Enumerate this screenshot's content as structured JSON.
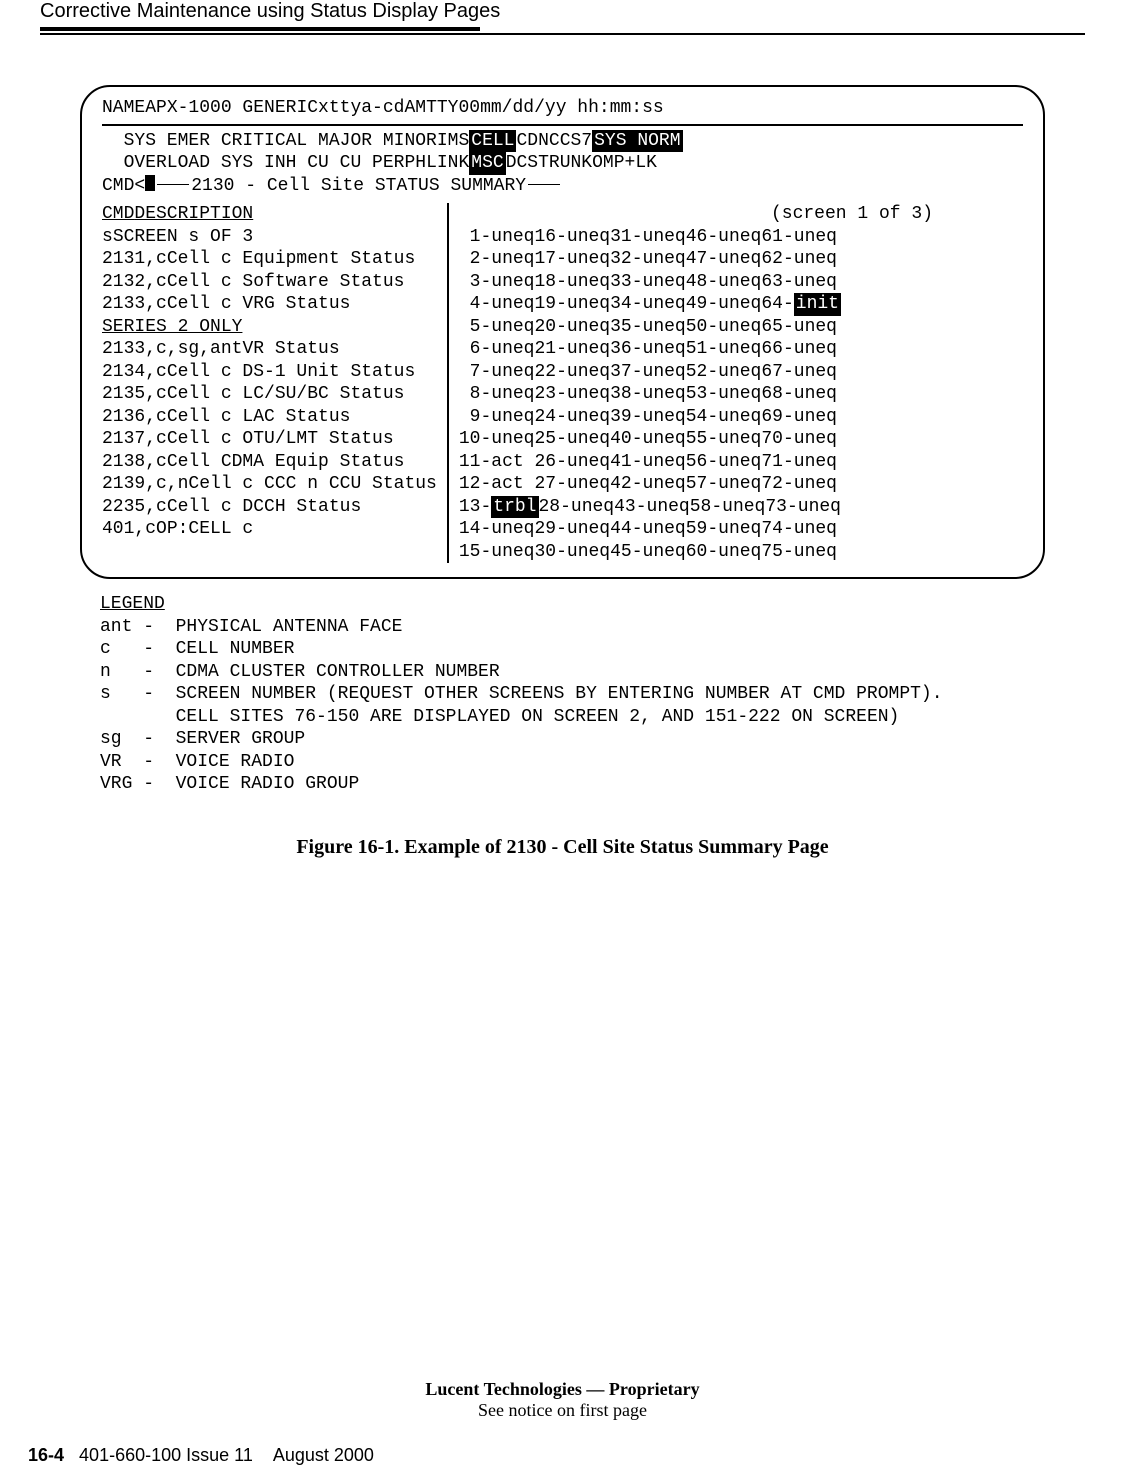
{
  "header": {
    "title": "Corrective Maintenance using Status Display Pages"
  },
  "terminal": {
    "top": {
      "name_label": "NAME",
      "name_value": "APX-1000 GENERIC",
      "tty": "xttya-cdA",
      "mtty": "MTTY00",
      "datetime": "mm/dd/yy hh:mm:ss"
    },
    "hdr_row1": {
      "left": "  SYS EMER CRITICAL MAJOR MINOR",
      "ims": "IMS",
      "cell": "CELL",
      "cdn": "CDN",
      "ccs7": "CCS7",
      "sysnorm": "SYS NORM"
    },
    "hdr_row2": {
      "left": "  OVERLOAD SYS INH CU CU PERPH",
      "link": "LINK",
      "msc": "MSC",
      "dcs": "DCS",
      "trunk": "TRUNK",
      "omplk": "OMP+LK"
    },
    "cmd_prompt": "CMD<",
    "summary_title": "2130 - Cell Site STATUS SUMMARY",
    "screen_info": "(screen 1 of 3)",
    "left_header_cmd": "CMD",
    "left_header_desc": "DESCRIPTION",
    "commands": [
      {
        "cmd": "s",
        "desc": "SCREEN s OF 3"
      },
      {
        "cmd": "2131,c",
        "desc": "Cell c Equipment Status"
      },
      {
        "cmd": "2132,c",
        "desc": "Cell c Software Status"
      },
      {
        "cmd": "2133,c",
        "desc": "Cell c VRG Status"
      }
    ],
    "series_label": "SERIES 2 ONLY",
    "commands2": [
      {
        "cmd": "2133,c,sg,ant",
        "desc": "VR Status"
      },
      {
        "cmd": "2134,c",
        "desc": "Cell c DS-1 Unit Status"
      },
      {
        "cmd": "2135,c",
        "desc": "Cell c LC/SU/BC Status"
      },
      {
        "cmd": "2136,c",
        "desc": "Cell c LAC Status"
      },
      {
        "cmd": "2137,c",
        "desc": "Cell c OTU/LMT Status"
      },
      {
        "cmd": "2138,c",
        "desc": "Cell CDMA Equip Status"
      },
      {
        "cmd": "2139,c,n",
        "desc": "Cell c CCC n CCU Status"
      },
      {
        "cmd": "2235,c",
        "desc": "Cell c DCCH Status"
      }
    ],
    "op_cmd": {
      "cmd": "401,c",
      "desc": "OP:CELL c"
    },
    "status_rows": [
      [
        " 1-uneq",
        "16-uneq",
        "31-uneq",
        "46-uneq",
        "61-uneq"
      ],
      [
        " 2-uneq",
        "17-uneq",
        "32-uneq",
        "47-uneq",
        "62-uneq"
      ],
      [
        " 3-uneq",
        "18-uneq",
        "33-uneq",
        "48-uneq",
        "63-uneq"
      ],
      [
        " 4-uneq",
        "19-uneq",
        "34-uneq",
        "49-uneq",
        "64-"
      ],
      [
        " 5-uneq",
        "20-uneq",
        "35-uneq",
        "50-uneq",
        "65-uneq"
      ],
      [
        " 6-uneq",
        "21-uneq",
        "36-uneq",
        "51-uneq",
        "66-uneq"
      ],
      [
        " 7-uneq",
        "22-uneq",
        "37-uneq",
        "52-uneq",
        "67-uneq"
      ],
      [
        " 8-uneq",
        "23-uneq",
        "38-uneq",
        "53-uneq",
        "68-uneq"
      ],
      [
        " 9-uneq",
        "24-uneq",
        "39-uneq",
        "54-uneq",
        "69-uneq"
      ],
      [
        "10-uneq",
        "25-uneq",
        "40-uneq",
        "55-uneq",
        "70-uneq"
      ],
      [
        "11-act ",
        "26-uneq",
        "41-uneq",
        "56-uneq",
        "71-uneq"
      ],
      [
        "12-act ",
        "27-uneq",
        "42-uneq",
        "57-uneq",
        "72-uneq"
      ],
      [
        "13-",
        "28-uneq",
        "43-uneq",
        "58-uneq",
        "73-uneq"
      ],
      [
        "14-uneq",
        "29-uneq",
        "44-uneq",
        "59-uneq",
        "74-uneq"
      ],
      [
        "15-uneq",
        "30-uneq",
        "45-uneq",
        "60-uneq",
        "75-uneq"
      ]
    ],
    "specials": {
      "row3_col4_suffix": "init",
      "row12_col0_suffix": "trbl"
    }
  },
  "legend": {
    "title": "LEGEND",
    "items": [
      {
        "k": "ant",
        "d": "PHYSICAL ANTENNA FACE"
      },
      {
        "k": "c",
        "d": "CELL NUMBER"
      },
      {
        "k": "n",
        "d": "CDMA CLUSTER CONTROLLER NUMBER"
      },
      {
        "k": "s",
        "d": "SCREEN NUMBER (REQUEST OTHER SCREENS BY ENTERING NUMBER AT CMD PROMPT). CELL SITES 76-150 ARE DISPLAYED ON SCREEN 2, AND 151-222 ON SCREEN)"
      },
      {
        "k": "sg",
        "d": "SERVER GROUP"
      },
      {
        "k": "VR",
        "d": "VOICE RADIO"
      },
      {
        "k": "VRG",
        "d": "VOICE RADIO GROUP"
      }
    ]
  },
  "figure_caption": "Figure 16-1.   Example of 2130 - Cell Site Status Summary Page",
  "proprietary": {
    "line1": "Lucent Technologies — Proprietary",
    "line2": "See notice on first page"
  },
  "footer": {
    "page": "16-4",
    "pub": "401-660-100 Issue 11",
    "date": "August 2000"
  }
}
